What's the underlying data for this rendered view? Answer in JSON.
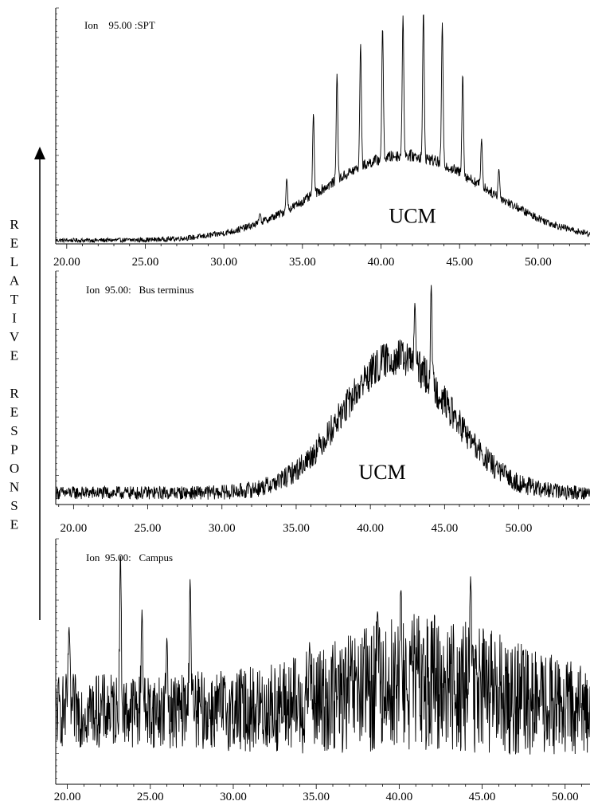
{
  "y_axis_label": "RELATIVE RESPONSE",
  "chart_data": [
    {
      "type": "line",
      "title": "Ion    95.00 :SPT",
      "xlabel": "",
      "ylabel": "",
      "xlim": [
        19.3,
        53.3
      ],
      "ylim": [
        0,
        100
      ],
      "x_ticks": [
        "20.00",
        "25.00",
        "30.00",
        "35.00",
        "40.00",
        "45.00",
        "50.00"
      ],
      "grid": false,
      "annotations": [
        {
          "text": "UCM",
          "x": 42.0,
          "y": 9
        }
      ],
      "series": [
        {
          "hump": {
            "center": 41.5,
            "width": 5.2,
            "height": 36
          },
          "baseline": 1.5,
          "noise": 2.5,
          "peaks": [
            {
              "x": 32.3,
              "y": 13
            },
            {
              "x": 34.0,
              "y": 28
            },
            {
              "x": 35.7,
              "y": 56
            },
            {
              "x": 37.2,
              "y": 73
            },
            {
              "x": 38.7,
              "y": 86
            },
            {
              "x": 40.1,
              "y": 93
            },
            {
              "x": 41.4,
              "y": 98
            },
            {
              "x": 42.7,
              "y": 100
            },
            {
              "x": 43.9,
              "y": 95
            },
            {
              "x": 45.2,
              "y": 73
            },
            {
              "x": 46.4,
              "y": 45
            },
            {
              "x": 47.5,
              "y": 32
            },
            {
              "x": 48.6,
              "y": 15
            }
          ]
        }
      ]
    },
    {
      "type": "line",
      "title": "Ion  95.00:   Bus terminus",
      "xlabel": "",
      "ylabel": "",
      "xlim": [
        18.8,
        54.8
      ],
      "ylim": [
        0,
        100
      ],
      "x_ticks": [
        "20.00",
        "25.00",
        "30.00",
        "35.00",
        "40.00",
        "45.00",
        "50.00"
      ],
      "grid": false,
      "annotations": [
        {
          "text": "UCM",
          "x": 40.8,
          "y": 11
        }
      ],
      "series": [
        {
          "hump": {
            "center": 41.8,
            "width": 3.6,
            "height": 58
          },
          "baseline": 5,
          "noise": 8,
          "peaks": [
            {
              "x": 43.0,
              "y": 87
            },
            {
              "x": 44.1,
              "y": 95
            }
          ]
        }
      ]
    },
    {
      "type": "line",
      "title": "Ion  95.00:   Campus",
      "xlabel": "",
      "ylabel": "",
      "xlim": [
        19.3,
        51.5
      ],
      "ylim": [
        0,
        100
      ],
      "x_ticks": [
        "20.00",
        "25.00",
        "30.00",
        "35.00",
        "40.00",
        "45.00",
        "50.00"
      ],
      "grid": false,
      "annotations": [],
      "series": [
        {
          "hump": {
            "center": 41.5,
            "width": 4.2,
            "height": 12
          },
          "baseline": 30,
          "noise": 20,
          "peaks": [
            {
              "x": 20.1,
              "y": 65
            },
            {
              "x": 23.2,
              "y": 95
            },
            {
              "x": 24.5,
              "y": 72
            },
            {
              "x": 26.0,
              "y": 60
            },
            {
              "x": 27.4,
              "y": 85
            },
            {
              "x": 34.6,
              "y": 58
            },
            {
              "x": 38.7,
              "y": 72
            },
            {
              "x": 40.1,
              "y": 80
            },
            {
              "x": 44.3,
              "y": 86
            }
          ]
        }
      ]
    }
  ]
}
